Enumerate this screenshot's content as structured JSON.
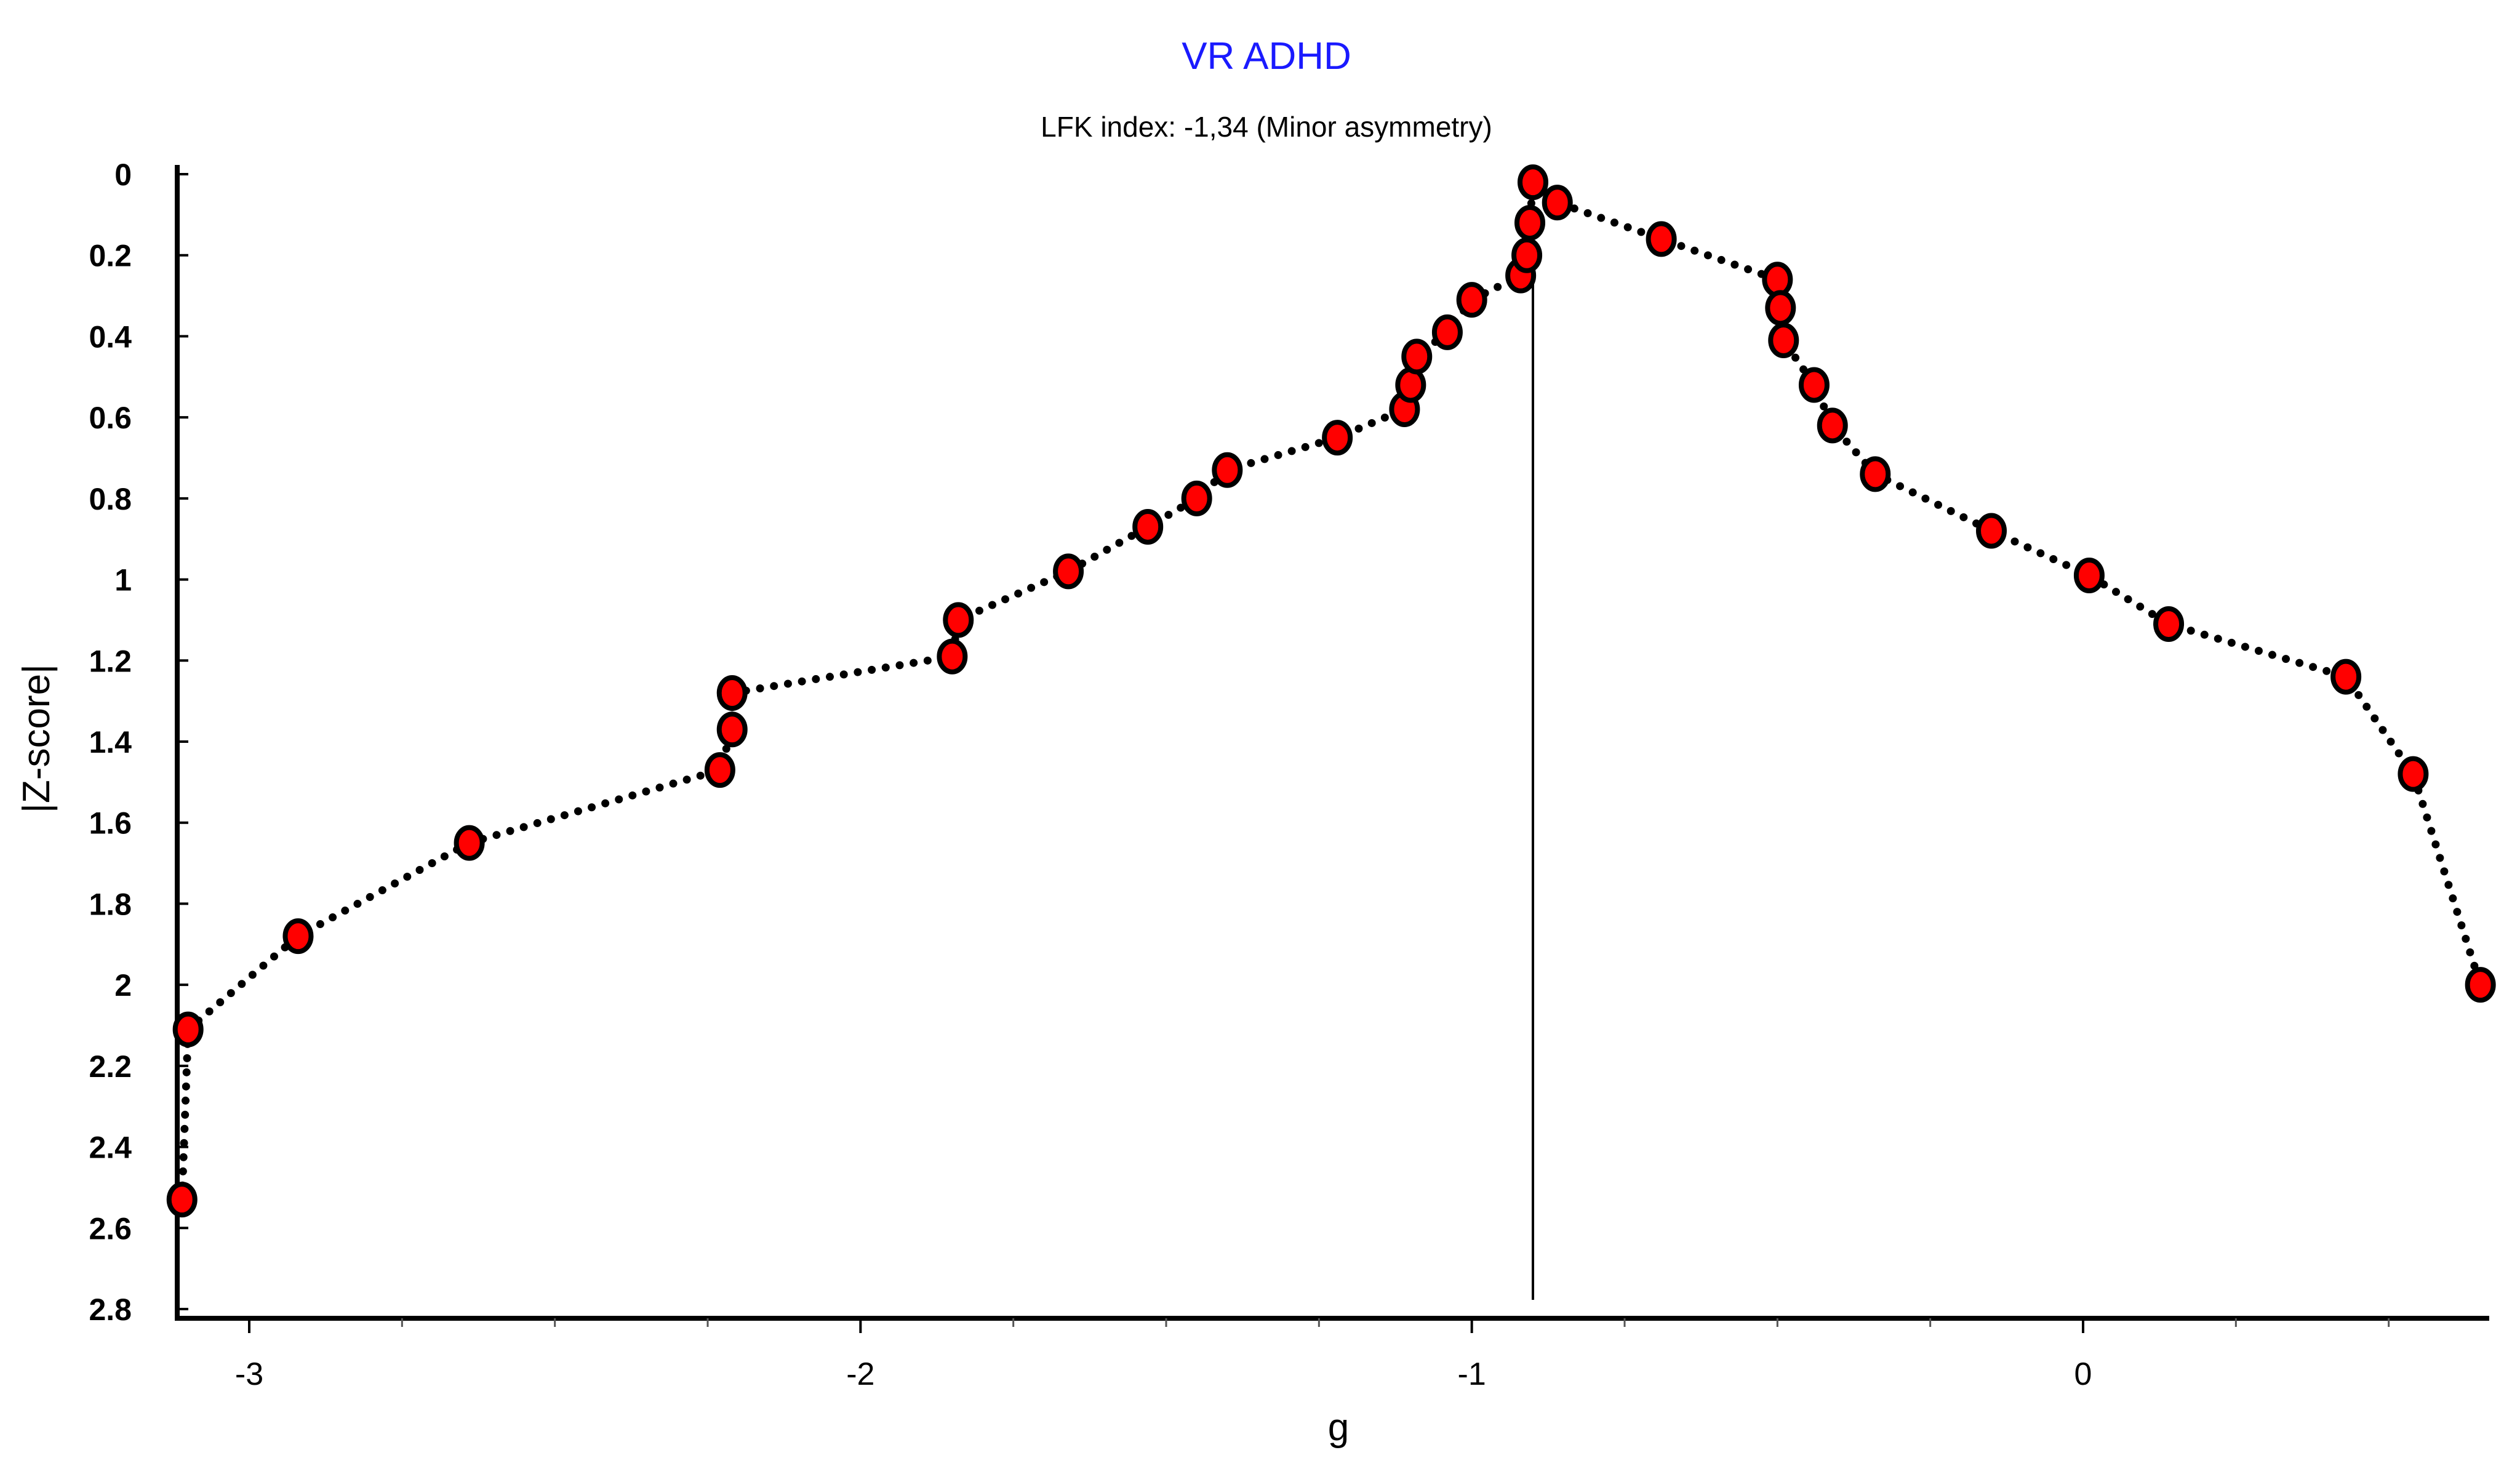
{
  "chart_data": {
    "type": "scatter",
    "title": "VR ADHD",
    "subtitle": "LFK index: -1,34 (Minor asymmetry)",
    "xlabel": "g",
    "ylabel": "|Z-score|",
    "xlim": [
      -3.12,
      0.66
    ],
    "ylim": [
      0,
      2.8
    ],
    "y_inverted": true,
    "x_ticks": [
      -3,
      -2,
      -1,
      0
    ],
    "x_tick_labels": [
      "-3",
      "-2",
      "-1",
      "0"
    ],
    "x_minor_ticks": [
      -2.75,
      -2.5,
      -2.25,
      -1.75,
      -1.5,
      -1.25,
      -0.75,
      -0.5,
      -0.25,
      0.25,
      0.5
    ],
    "y_ticks": [
      0,
      0.2,
      0.4,
      0.6,
      0.8,
      1,
      1.2,
      1.4,
      1.6,
      1.8,
      2,
      2.2,
      2.4,
      2.6,
      2.8
    ],
    "y_tick_labels": [
      "0",
      "0.2",
      "0.4",
      "0.6",
      "0.8",
      "1",
      "1.2",
      "1.4",
      "1.6",
      "1.8",
      "2",
      "2.2",
      "2.4",
      "2.6",
      "2.8"
    ],
    "reference_line_x": -0.9,
    "grid": false,
    "line_style": "dotted",
    "colors": {
      "title": "#1a1aff",
      "marker_fill": "#ff0000",
      "marker_stroke": "#000000",
      "line": "#000000"
    },
    "series": [
      {
        "points": [
          {
            "x": -3.11,
            "y": 2.53
          },
          {
            "x": -3.1,
            "y": 2.11
          },
          {
            "x": -2.92,
            "y": 1.88
          },
          {
            "x": -2.64,
            "y": 1.65
          },
          {
            "x": -2.23,
            "y": 1.47
          },
          {
            "x": -2.21,
            "y": 1.37
          },
          {
            "x": -2.21,
            "y": 1.28
          },
          {
            "x": -1.85,
            "y": 1.19
          },
          {
            "x": -1.84,
            "y": 1.1
          },
          {
            "x": -1.66,
            "y": 0.98
          },
          {
            "x": -1.53,
            "y": 0.87
          },
          {
            "x": -1.45,
            "y": 0.8
          },
          {
            "x": -1.4,
            "y": 0.73
          },
          {
            "x": -1.22,
            "y": 0.65
          },
          {
            "x": -1.11,
            "y": 0.58
          },
          {
            "x": -1.1,
            "y": 0.52
          },
          {
            "x": -1.09,
            "y": 0.45
          },
          {
            "x": -1.04,
            "y": 0.39
          },
          {
            "x": -1.0,
            "y": 0.31
          },
          {
            "x": -0.92,
            "y": 0.25
          },
          {
            "x": -0.91,
            "y": 0.2
          },
          {
            "x": -0.905,
            "y": 0.12
          },
          {
            "x": -0.9,
            "y": 0.02
          },
          {
            "x": -0.86,
            "y": 0.07
          },
          {
            "x": -0.69,
            "y": 0.16
          },
          {
            "x": -0.5,
            "y": 0.26
          },
          {
            "x": -0.495,
            "y": 0.33
          },
          {
            "x": -0.49,
            "y": 0.41
          },
          {
            "x": -0.44,
            "y": 0.52
          },
          {
            "x": -0.41,
            "y": 0.62
          },
          {
            "x": -0.34,
            "y": 0.74
          },
          {
            "x": -0.15,
            "y": 0.88
          },
          {
            "x": 0.01,
            "y": 0.99
          },
          {
            "x": 0.14,
            "y": 1.11
          },
          {
            "x": 0.43,
            "y": 1.24
          },
          {
            "x": 0.54,
            "y": 1.48
          },
          {
            "x": 0.65,
            "y": 2.0
          }
        ]
      }
    ]
  }
}
